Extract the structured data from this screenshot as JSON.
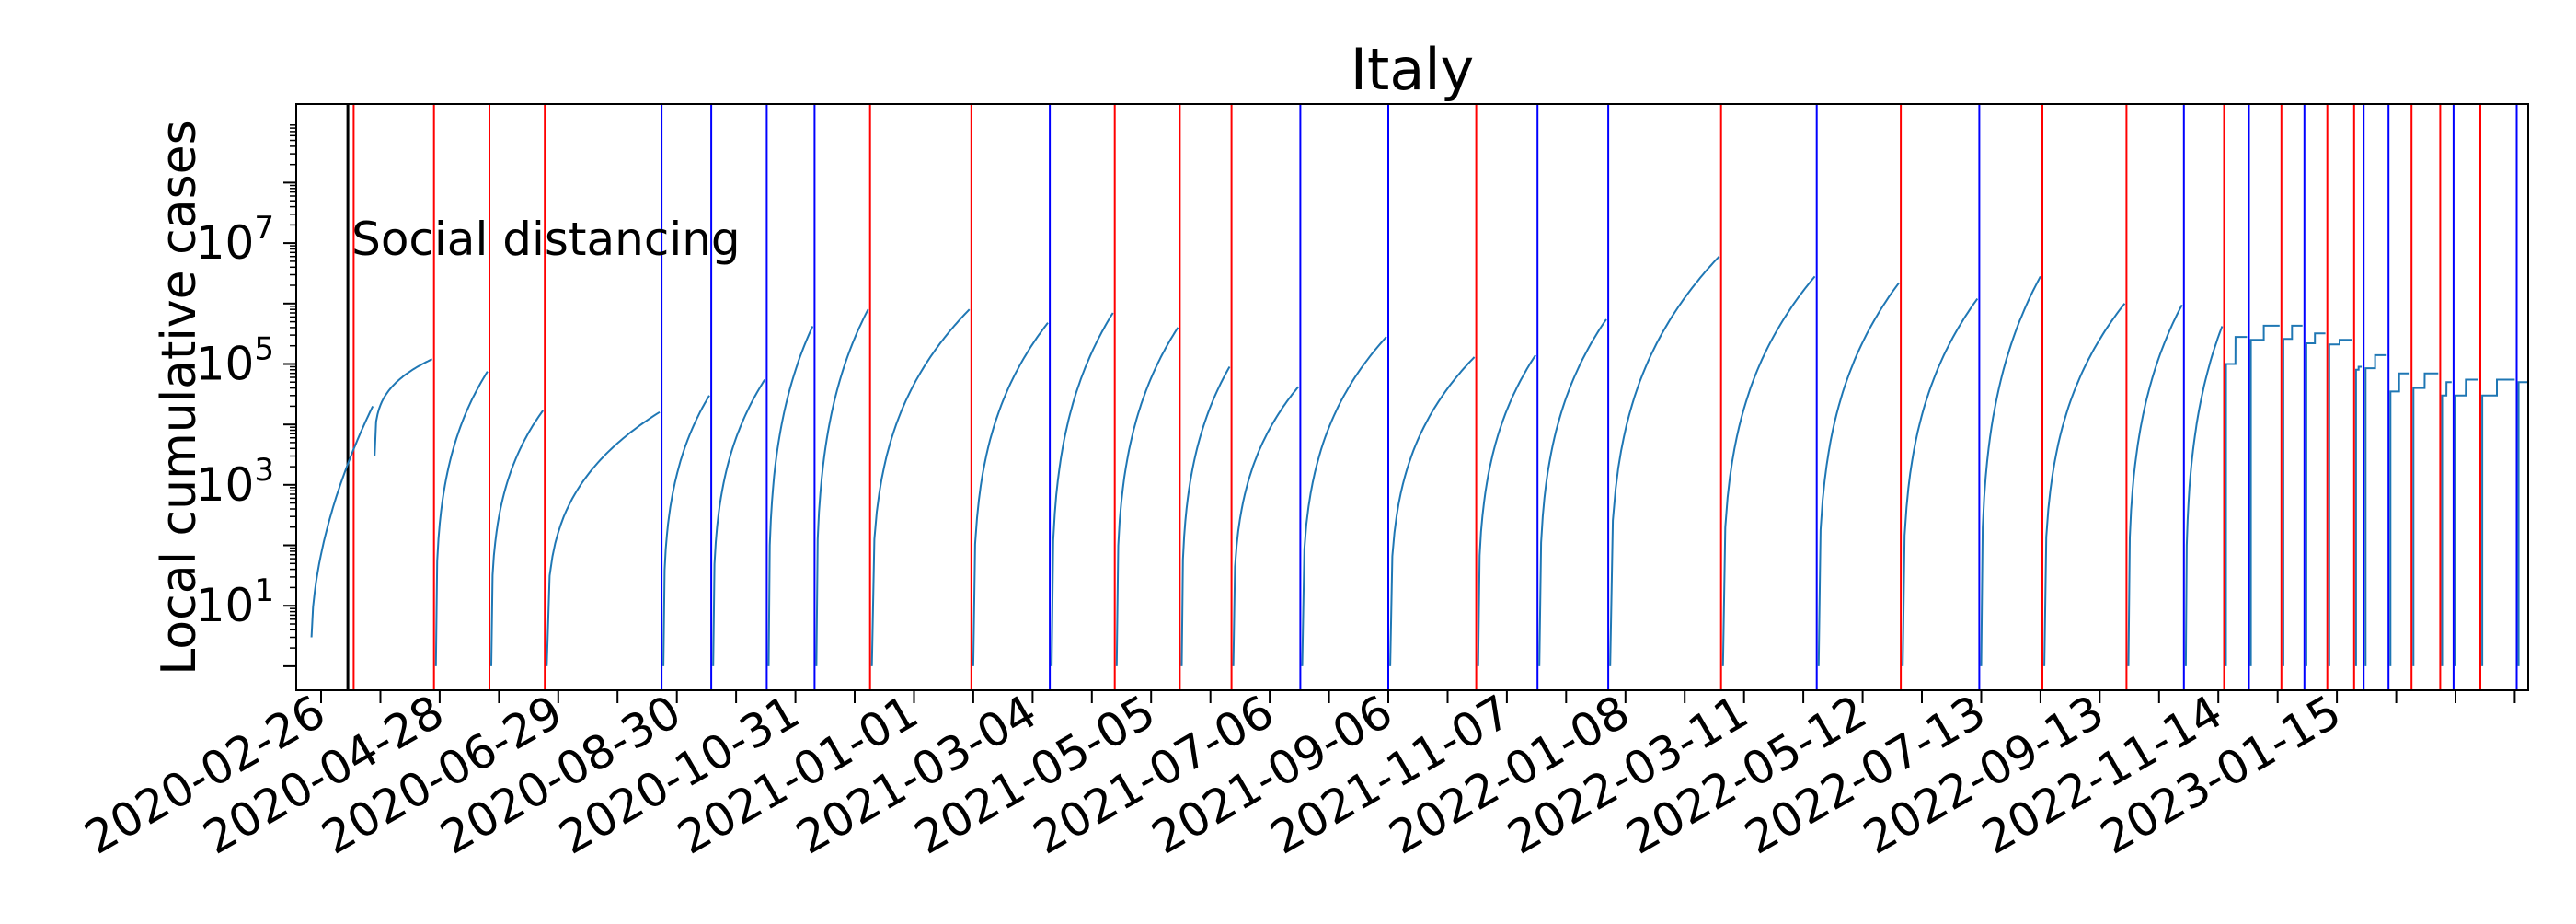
{
  "chart_data": {
    "type": "line",
    "title": "Italy",
    "xlabel": "",
    "ylabel": "Local cumulative cases",
    "yscale": "log",
    "ylim": [
      0.4,
      2000000000
    ],
    "xlim": [
      "2020-02-13",
      "2023-04-25"
    ],
    "x_tick_labels": [
      "2020-02-26",
      "2020-04-28",
      "2020-06-29",
      "2020-08-30",
      "2020-10-31",
      "2021-01-01",
      "2021-03-04",
      "2021-05-05",
      "2021-07-06",
      "2021-09-06",
      "2021-11-07",
      "2022-01-08",
      "2022-03-11",
      "2022-05-12",
      "2022-07-13",
      "2022-09-13",
      "2022-11-14",
      "2023-01-15"
    ],
    "y_ticks": [
      {
        "value": 10,
        "base": "10",
        "exp": "1"
      },
      {
        "value": 1000,
        "base": "10",
        "exp": "3"
      },
      {
        "value": 100000,
        "base": "10",
        "exp": "5"
      },
      {
        "value": 10000000,
        "base": "10",
        "exp": "7"
      }
    ],
    "grid": false,
    "legend": "none",
    "series_color": "#1f77b4",
    "annotation": {
      "label": "Social distancing",
      "date": "2020-03-11",
      "color": "#000000"
    },
    "red_lines": [
      "2020-03-14",
      "2020-04-25",
      "2020-05-24",
      "2020-06-22",
      "2020-12-09",
      "2021-01-31",
      "2021-04-16",
      "2021-05-20",
      "2021-06-16",
      "2021-10-22",
      "2022-02-27",
      "2022-06-01",
      "2022-08-14",
      "2022-09-27",
      "2022-11-17",
      "2022-12-17",
      "2023-01-10",
      "2023-01-24",
      "2023-02-23",
      "2023-03-10",
      "2023-03-31"
    ],
    "blue_lines": [
      "2020-08-22",
      "2020-09-17",
      "2020-10-16",
      "2020-11-10",
      "2021-03-13",
      "2021-07-22",
      "2021-09-06",
      "2021-11-23",
      "2021-12-30",
      "2022-04-18",
      "2022-07-12",
      "2022-10-27",
      "2022-11-30",
      "2022-12-29",
      "2023-01-29",
      "2023-02-11",
      "2023-03-17",
      "2023-04-19"
    ],
    "segments": [
      {
        "start": "2020-02-21",
        "end": "2020-03-24",
        "start_value": 3,
        "end_value": 20000,
        "shape": "power",
        "k": 0.55
      },
      {
        "start": "2020-03-25",
        "end": "2020-04-24",
        "start_value": 3000,
        "end_value": 120000,
        "shape": "sqrt"
      },
      {
        "start": "2020-04-26",
        "end": "2020-05-23",
        "start_value": 1,
        "end_value": 75000,
        "shape": "sqrt"
      },
      {
        "start": "2020-05-25",
        "end": "2020-06-21",
        "start_value": 1,
        "end_value": 17000,
        "shape": "sqrt"
      },
      {
        "start": "2020-06-23",
        "end": "2020-08-21",
        "start_value": 1,
        "end_value": 16000,
        "shape": "sqrt"
      },
      {
        "start": "2020-08-23",
        "end": "2020-09-16",
        "start_value": 1,
        "end_value": 30000,
        "shape": "sqrt"
      },
      {
        "start": "2020-09-18",
        "end": "2020-10-15",
        "start_value": 1,
        "end_value": 55000,
        "shape": "sqrt"
      },
      {
        "start": "2020-10-17",
        "end": "2020-11-09",
        "start_value": 1,
        "end_value": 420000,
        "shape": "sqrt"
      },
      {
        "start": "2020-11-11",
        "end": "2020-12-08",
        "start_value": 1,
        "end_value": 800000,
        "shape": "sqrt"
      },
      {
        "start": "2020-12-10",
        "end": "2021-01-30",
        "start_value": 1,
        "end_value": 800000,
        "shape": "sqrt"
      },
      {
        "start": "2021-02-01",
        "end": "2021-03-12",
        "start_value": 1,
        "end_value": 480000,
        "shape": "sqrt"
      },
      {
        "start": "2021-03-14",
        "end": "2021-04-15",
        "start_value": 1,
        "end_value": 700000,
        "shape": "sqrt"
      },
      {
        "start": "2021-04-17",
        "end": "2021-05-19",
        "start_value": 1,
        "end_value": 400000,
        "shape": "sqrt"
      },
      {
        "start": "2021-05-21",
        "end": "2021-06-15",
        "start_value": 1,
        "end_value": 90000,
        "shape": "sqrt"
      },
      {
        "start": "2021-06-17",
        "end": "2021-07-21",
        "start_value": 1,
        "end_value": 42000,
        "shape": "sqrt"
      },
      {
        "start": "2021-07-23",
        "end": "2021-09-05",
        "start_value": 1,
        "end_value": 280000,
        "shape": "sqrt"
      },
      {
        "start": "2021-09-07",
        "end": "2021-10-21",
        "start_value": 1,
        "end_value": 130000,
        "shape": "sqrt"
      },
      {
        "start": "2021-10-23",
        "end": "2021-11-22",
        "start_value": 1,
        "end_value": 140000,
        "shape": "sqrt"
      },
      {
        "start": "2021-11-24",
        "end": "2021-12-29",
        "start_value": 1,
        "end_value": 550000,
        "shape": "sqrt"
      },
      {
        "start": "2021-12-31",
        "end": "2022-02-26",
        "start_value": 1,
        "end_value": 6000000,
        "shape": "sqrt"
      },
      {
        "start": "2022-02-28",
        "end": "2022-04-17",
        "start_value": 1,
        "end_value": 2800000,
        "shape": "sqrt"
      },
      {
        "start": "2022-04-19",
        "end": "2022-05-31",
        "start_value": 1,
        "end_value": 2200000,
        "shape": "sqrt"
      },
      {
        "start": "2022-06-02",
        "end": "2022-07-11",
        "start_value": 1,
        "end_value": 1200000,
        "shape": "sqrt"
      },
      {
        "start": "2022-07-13",
        "end": "2022-08-13",
        "start_value": 1,
        "end_value": 2800000,
        "shape": "sqrt"
      },
      {
        "start": "2022-08-15",
        "end": "2022-09-26",
        "start_value": 1,
        "end_value": 1000000,
        "shape": "sqrt"
      },
      {
        "start": "2022-09-28",
        "end": "2022-10-26",
        "start_value": 1,
        "end_value": 950000,
        "shape": "sqrt"
      },
      {
        "start": "2022-10-28",
        "end": "2022-11-16",
        "start_value": 1,
        "end_value": 420000,
        "shape": "sqrt"
      },
      {
        "start": "2022-11-18",
        "end": "2022-11-29",
        "start_value": 1,
        "end_value": 280000,
        "shape": "step",
        "mid_value": 100000
      },
      {
        "start": "2022-12-01",
        "end": "2022-12-16",
        "start_value": 1,
        "end_value": 430000,
        "shape": "step",
        "mid_value": 250000
      },
      {
        "start": "2022-12-18",
        "end": "2022-12-28",
        "start_value": 1,
        "end_value": 430000,
        "shape": "step",
        "mid_value": 260000
      },
      {
        "start": "2022-12-30",
        "end": "2023-01-09",
        "start_value": 1,
        "end_value": 320000,
        "shape": "step",
        "mid_value": 220000
      },
      {
        "start": "2023-01-11",
        "end": "2023-01-23",
        "start_value": 1,
        "end_value": 250000,
        "shape": "step",
        "mid_value": 210000
      },
      {
        "start": "2023-01-25",
        "end": "2023-01-28",
        "start_value": 1,
        "end_value": 90000,
        "shape": "step",
        "mid_value": 80000
      },
      {
        "start": "2023-01-30",
        "end": "2023-02-10",
        "start_value": 1,
        "end_value": 140000,
        "shape": "step",
        "mid_value": 85000
      },
      {
        "start": "2023-02-12",
        "end": "2023-02-22",
        "start_value": 1,
        "end_value": 70000,
        "shape": "step",
        "mid_value": 35000
      },
      {
        "start": "2023-02-24",
        "end": "2023-03-09",
        "start_value": 1,
        "end_value": 70000,
        "shape": "step",
        "mid_value": 40000
      },
      {
        "start": "2023-03-11",
        "end": "2023-03-16",
        "start_value": 1,
        "end_value": 50000,
        "shape": "step",
        "mid_value": 30000
      },
      {
        "start": "2023-03-18",
        "end": "2023-03-30",
        "start_value": 1,
        "end_value": 55000,
        "shape": "step",
        "mid_value": 30000
      },
      {
        "start": "2023-04-01",
        "end": "2023-04-18",
        "start_value": 1,
        "end_value": 55000,
        "shape": "step",
        "mid_value": 30000
      },
      {
        "start": "2023-04-20",
        "end": "2023-04-25",
        "start_value": 1,
        "end_value": 50000,
        "shape": "step",
        "mid_value": 50000
      }
    ]
  }
}
